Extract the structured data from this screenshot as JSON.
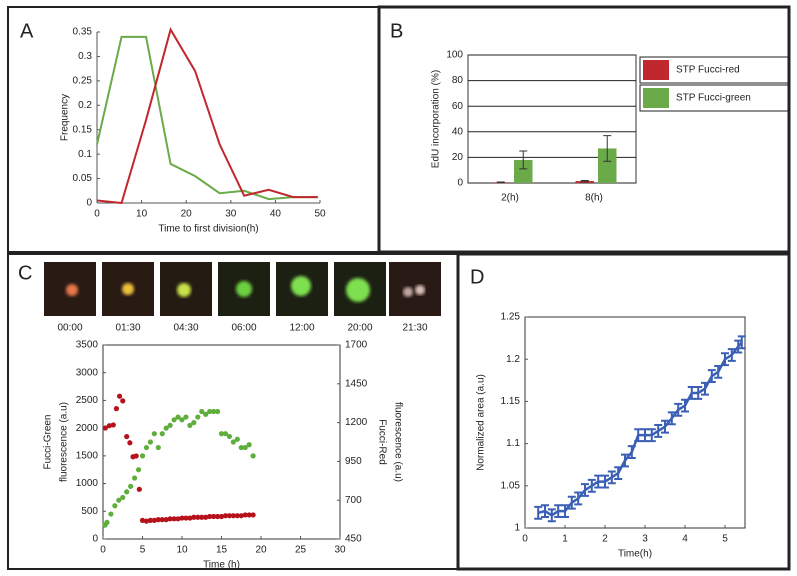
{
  "panel_labels": [
    "A",
    "B",
    "C",
    "D"
  ],
  "micrographs": {
    "times": [
      "00:00",
      "01:30",
      "04:30",
      "06:00",
      "12:00",
      "20:00",
      "21:30"
    ]
  },
  "chart_data": [
    {
      "type": "line",
      "xlabel": "Time to first division(h)",
      "ylabel": "Frequency",
      "x": [
        0,
        5.5,
        11,
        16.5,
        22,
        27.5,
        33,
        38.5,
        44,
        49.5
      ],
      "series": [
        {
          "color": "#6aaa48",
          "values": [
            0.12,
            0.34,
            0.34,
            0.08,
            0.055,
            0.02,
            0.025,
            0.008,
            0.012,
            0.012
          ]
        },
        {
          "color": "#c0282d",
          "values": [
            0.005,
            0.0,
            0.17,
            0.355,
            0.27,
            0.12,
            0.015,
            0.027,
            0.012,
            0.012
          ]
        }
      ],
      "xlim": [
        0,
        50
      ],
      "xticks": [
        0,
        10,
        20,
        30,
        40,
        50
      ],
      "ylim": [
        0,
        0.35
      ],
      "yticks": [
        0,
        0.05,
        0.1,
        0.15,
        0.2,
        0.25,
        0.3,
        0.35
      ]
    },
    {
      "type": "bar",
      "ylabel": "EdU incorporation (%)",
      "categories": [
        "2(h)",
        "8(h)"
      ],
      "series": [
        {
          "name": "STP Fucci-red",
          "color": "#c0282d",
          "values": [
            0.5,
            1.5
          ],
          "errors": [
            0.3,
            0.5
          ]
        },
        {
          "name": "STP Fucci-green",
          "color": "#6aaa48",
          "values": [
            18,
            27
          ],
          "errors": [
            7,
            10
          ]
        }
      ],
      "ylim": [
        0,
        100
      ],
      "yticks": [
        0,
        20,
        40,
        60,
        80,
        100
      ],
      "grid": true,
      "legend": "right"
    },
    {
      "type": "scatter",
      "xlabel": "Time (h)",
      "ylabel": [
        "Fucci-Green",
        "fluorescence (a.u)"
      ],
      "y2label": [
        "Fucci-Red",
        "fluorescence (a.u)"
      ],
      "series": [
        {
          "color": "#5fae3b",
          "x": [
            0.25,
            0.5,
            1,
            1.5,
            2,
            2.5,
            3,
            3.5,
            4,
            4.5,
            5,
            5.5,
            6,
            6.5,
            7,
            7.5,
            8,
            8.5,
            9,
            9.5,
            10,
            10.5,
            11,
            11.5,
            12,
            12.5,
            13,
            13.5,
            14,
            14.5,
            15,
            15.5,
            16,
            16.5,
            17,
            17.5,
            18,
            18.5,
            19
          ],
          "values": [
            250,
            300,
            450,
            600,
            700,
            750,
            850,
            950,
            1100,
            1250,
            1500,
            1650,
            1750,
            1900,
            1650,
            1900,
            2000,
            2050,
            2150,
            2200,
            2150,
            2200,
            2050,
            2100,
            2200,
            2300,
            2250,
            2300,
            2300,
            2300,
            1900,
            1900,
            1850,
            1750,
            1800,
            1650,
            1650,
            1700,
            1500
          ]
        },
        {
          "color": "#b5121b",
          "axis": "y2",
          "x": [
            0.3,
            0.8,
            1.3,
            1.7,
            2.1,
            2.5,
            3.0,
            3.4,
            3.8,
            4.2,
            4.6,
            5,
            5.5,
            6,
            6.5,
            7,
            7.5,
            8,
            8.5,
            9,
            9.5,
            10,
            10.5,
            11,
            11.5,
            12,
            12.5,
            13,
            13.5,
            14,
            14.5,
            15,
            15.5,
            16,
            16.5,
            17,
            17.5,
            18,
            18.5,
            19
          ],
          "values": [
            1165,
            1180,
            1185,
            1290,
            1370,
            1340,
            1110,
            1070,
            980,
            985,
            770,
            570,
            565,
            570,
            570,
            575,
            575,
            575,
            580,
            580,
            580,
            585,
            585,
            585,
            590,
            590,
            590,
            590,
            595,
            595,
            595,
            595,
            600,
            600,
            600,
            600,
            600,
            605,
            605,
            605
          ]
        }
      ],
      "xlim": [
        0,
        30
      ],
      "xticks": [
        0,
        5,
        10,
        15,
        20,
        25,
        30
      ],
      "ylim": [
        0,
        3500
      ],
      "yticks": [
        0,
        500,
        1000,
        1500,
        2000,
        2500,
        3000,
        3500
      ],
      "y2lim": [
        450,
        1700
      ],
      "y2ticks": [
        450,
        700,
        950,
        1200,
        1450,
        1700
      ]
    },
    {
      "type": "errorline",
      "xlabel": "Time(h)",
      "ylabel": "Normalized area (a.u)",
      "color": "#3a5fb4",
      "x": [
        0.33,
        0.5,
        0.67,
        0.83,
        1,
        1.17,
        1.33,
        1.5,
        1.67,
        1.83,
        2,
        2.17,
        2.33,
        2.5,
        2.67,
        2.83,
        3,
        3.17,
        3.33,
        3.5,
        3.67,
        3.83,
        4,
        4.17,
        4.33,
        4.5,
        4.67,
        4.83,
        5,
        5.17,
        5.33,
        5.42
      ],
      "values": [
        1.018,
        1.02,
        1.015,
        1.02,
        1.02,
        1.03,
        1.035,
        1.045,
        1.05,
        1.055,
        1.055,
        1.06,
        1.065,
        1.08,
        1.09,
        1.11,
        1.11,
        1.11,
        1.115,
        1.12,
        1.13,
        1.14,
        1.145,
        1.16,
        1.16,
        1.165,
        1.18,
        1.185,
        1.2,
        1.205,
        1.215,
        1.22
      ],
      "errors": [
        0.007,
        0.007,
        0.007,
        0.007,
        0.007,
        0.007,
        0.007,
        0.007,
        0.007,
        0.007,
        0.007,
        0.007,
        0.007,
        0.007,
        0.007,
        0.007,
        0.007,
        0.007,
        0.007,
        0.007,
        0.007,
        0.007,
        0.007,
        0.007,
        0.007,
        0.007,
        0.007,
        0.007,
        0.007,
        0.007,
        0.007,
        0.007
      ],
      "xlim": [
        0,
        5.5
      ],
      "xticks": [
        0,
        1,
        2,
        3,
        4,
        5
      ],
      "ylim": [
        1,
        1.25
      ],
      "yticks": [
        1,
        1.05,
        1.1,
        1.15,
        1.2,
        1.25
      ]
    }
  ]
}
